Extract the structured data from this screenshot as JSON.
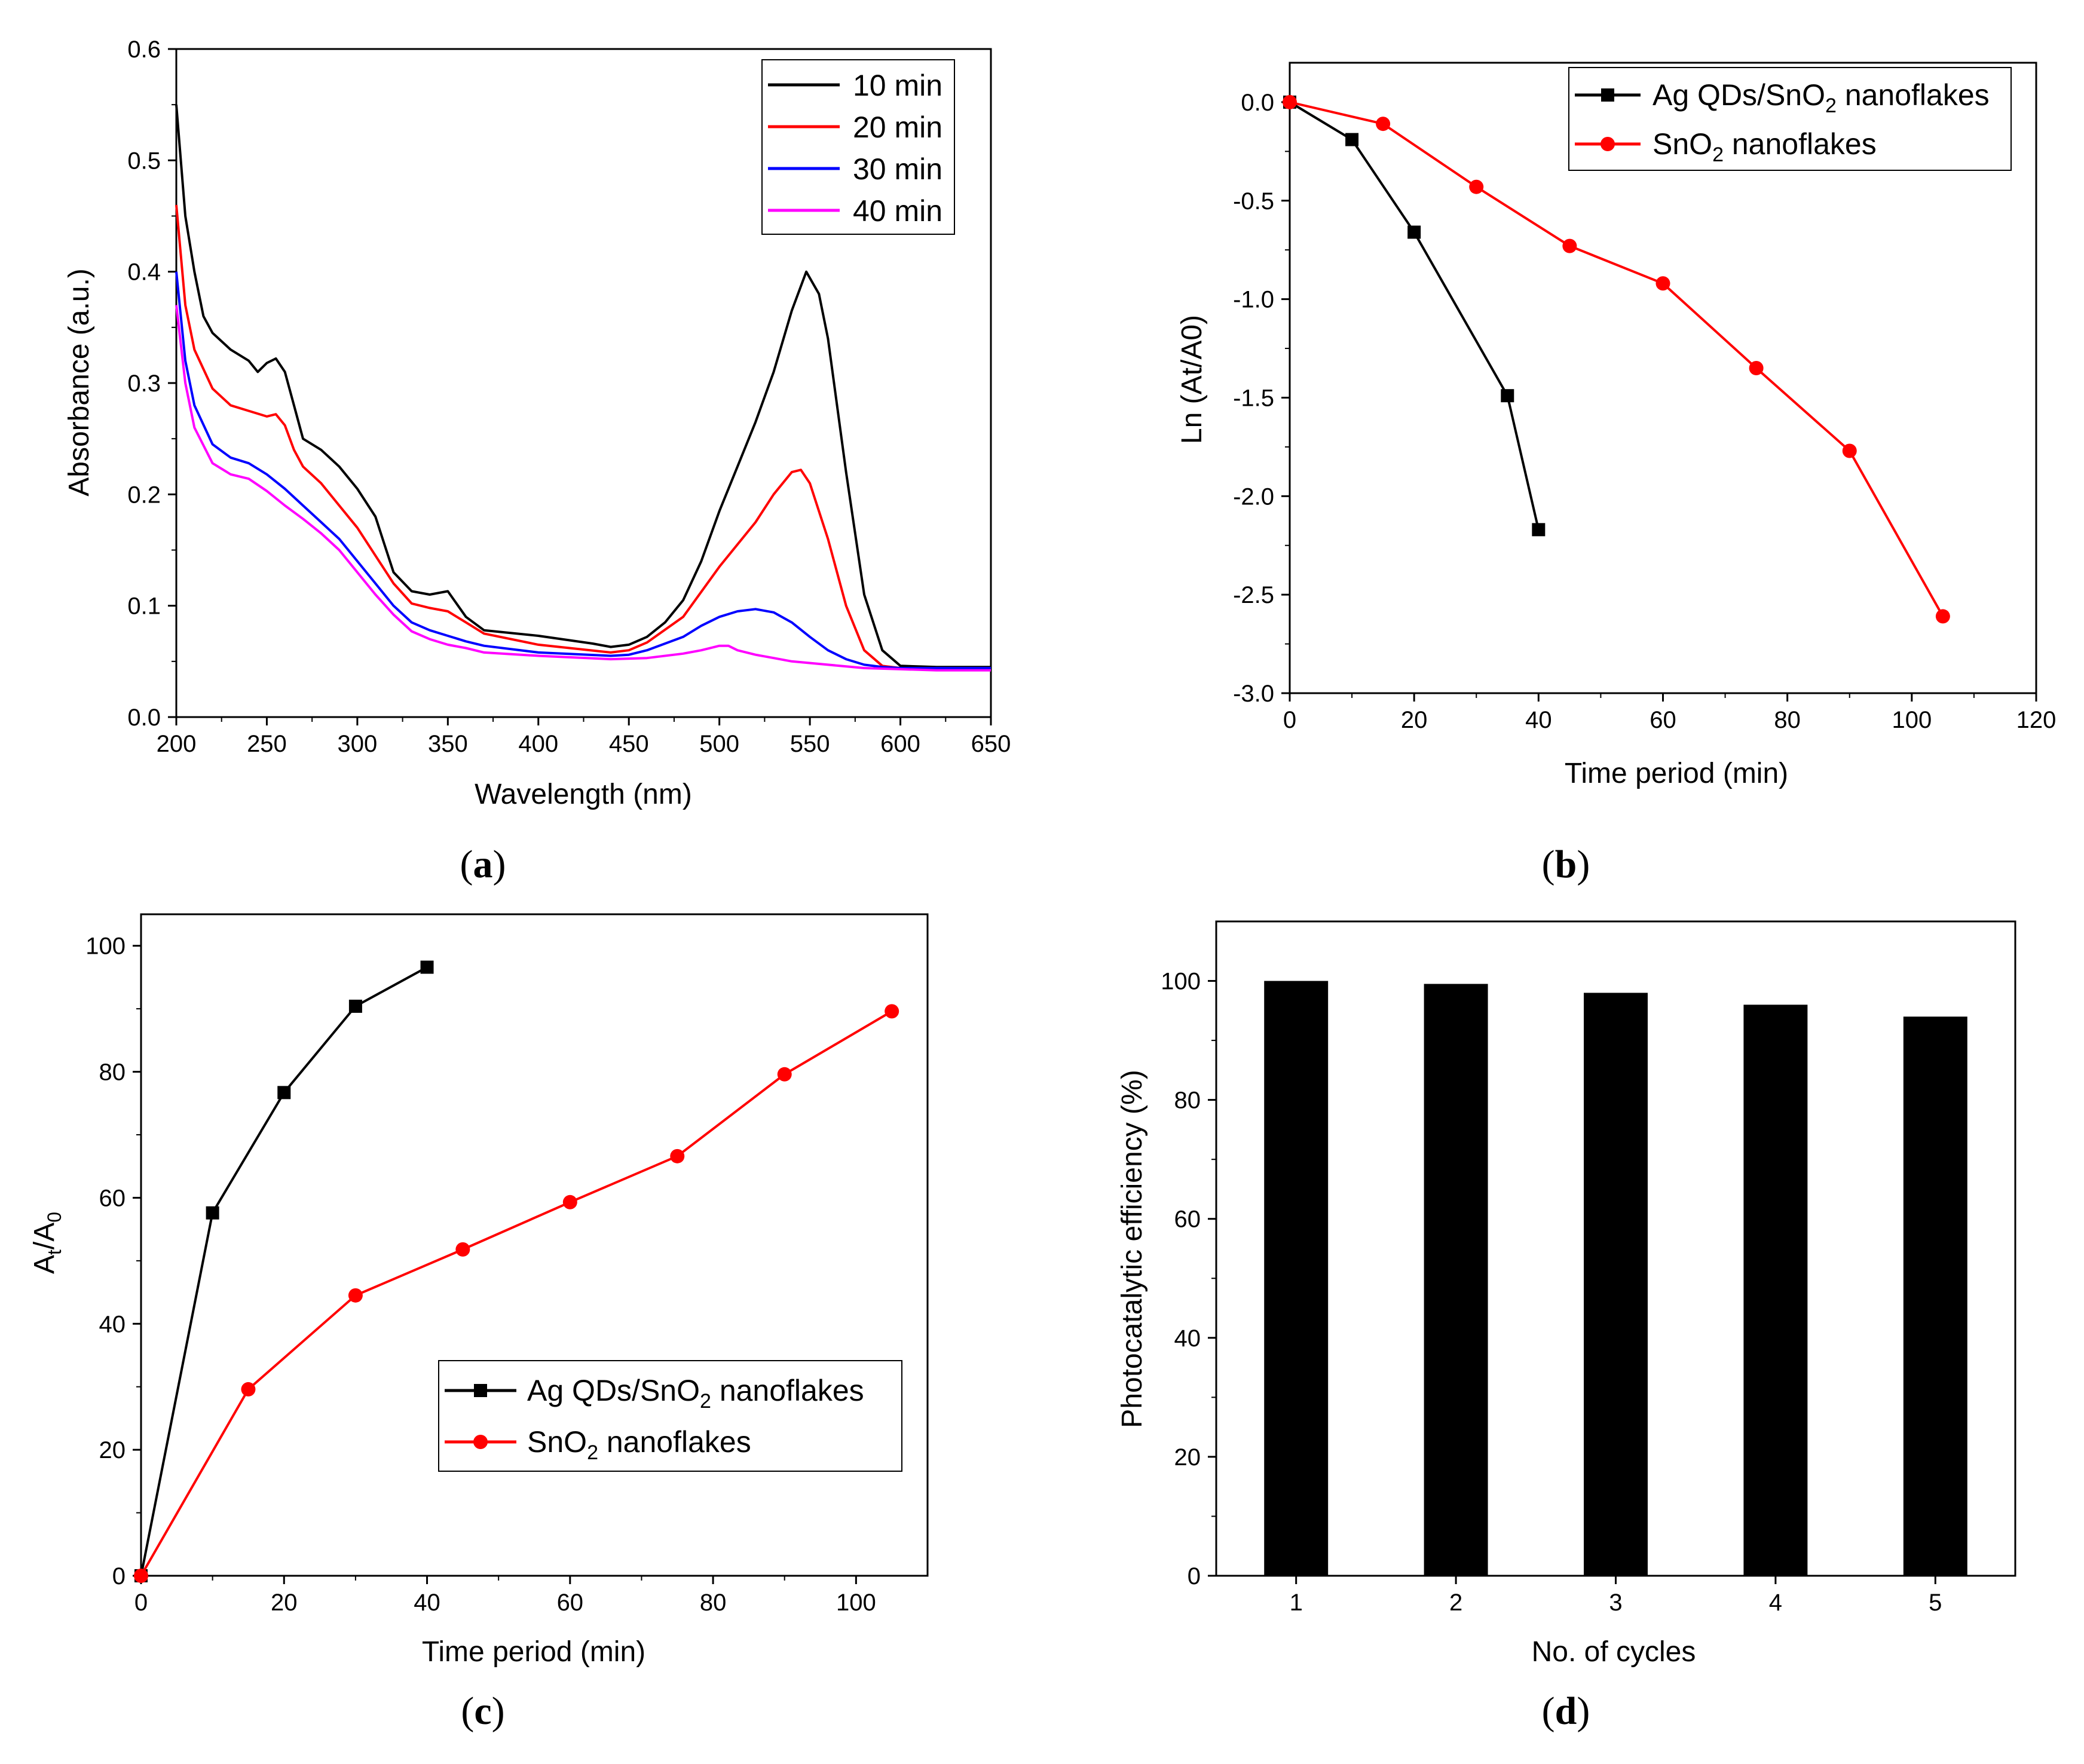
{
  "figure": {
    "panel_letters": [
      "a",
      "b",
      "c",
      "d"
    ],
    "colors": {
      "black": "#000000",
      "red": "#ff0000",
      "blue": "#0000ff",
      "magenta": "#ff00ff"
    }
  },
  "chart_data": [
    {
      "id": "a",
      "type": "line",
      "caption": "a",
      "xlabel": "Wavelength (nm)",
      "ylabel": "Absorbance (a.u.)",
      "xlim": [
        200,
        650
      ],
      "ylim": [
        0.0,
        0.6
      ],
      "xticks": [
        200,
        250,
        300,
        350,
        400,
        450,
        500,
        550,
        600,
        650
      ],
      "yticks": [
        0.0,
        0.1,
        0.2,
        0.3,
        0.4,
        0.5,
        0.6
      ],
      "ytick_labels": [
        "0.0",
        "0.1",
        "0.2",
        "0.3",
        "0.4",
        "0.5",
        "0.6"
      ],
      "legend_position": "top-right",
      "series": [
        {
          "name": "10 min",
          "color": "#000000",
          "x": [
            200,
            205,
            210,
            215,
            220,
            230,
            240,
            245,
            250,
            255,
            260,
            265,
            270,
            280,
            290,
            300,
            310,
            315,
            320,
            330,
            340,
            350,
            360,
            370,
            400,
            430,
            440,
            450,
            460,
            470,
            480,
            490,
            500,
            510,
            520,
            530,
            540,
            548,
            555,
            560,
            570,
            580,
            590,
            600,
            620,
            650
          ],
          "y": [
            0.55,
            0.45,
            0.4,
            0.36,
            0.345,
            0.33,
            0.32,
            0.31,
            0.318,
            0.322,
            0.31,
            0.28,
            0.25,
            0.24,
            0.225,
            0.205,
            0.18,
            0.155,
            0.13,
            0.113,
            0.11,
            0.113,
            0.09,
            0.078,
            0.073,
            0.066,
            0.063,
            0.065,
            0.072,
            0.085,
            0.105,
            0.14,
            0.185,
            0.225,
            0.265,
            0.31,
            0.365,
            0.4,
            0.38,
            0.34,
            0.22,
            0.11,
            0.06,
            0.046,
            0.045,
            0.045
          ]
        },
        {
          "name": "20 min",
          "color": "#ff0000",
          "x": [
            200,
            205,
            210,
            220,
            230,
            240,
            250,
            255,
            260,
            265,
            270,
            280,
            290,
            300,
            310,
            320,
            330,
            340,
            350,
            360,
            370,
            400,
            440,
            450,
            460,
            480,
            500,
            520,
            530,
            540,
            545,
            550,
            560,
            570,
            580,
            590,
            600,
            620,
            650
          ],
          "y": [
            0.46,
            0.37,
            0.33,
            0.295,
            0.28,
            0.275,
            0.27,
            0.272,
            0.262,
            0.24,
            0.225,
            0.21,
            0.19,
            0.17,
            0.145,
            0.12,
            0.102,
            0.098,
            0.095,
            0.085,
            0.075,
            0.065,
            0.058,
            0.06,
            0.067,
            0.09,
            0.135,
            0.175,
            0.2,
            0.22,
            0.222,
            0.21,
            0.16,
            0.1,
            0.06,
            0.046,
            0.044,
            0.044,
            0.044
          ]
        },
        {
          "name": "30 min",
          "color": "#0000ff",
          "x": [
            200,
            205,
            210,
            220,
            230,
            240,
            250,
            260,
            270,
            280,
            290,
            300,
            310,
            320,
            330,
            340,
            350,
            360,
            370,
            400,
            440,
            450,
            460,
            480,
            490,
            500,
            510,
            520,
            530,
            540,
            550,
            560,
            570,
            580,
            590,
            600,
            620,
            650
          ],
          "y": [
            0.4,
            0.32,
            0.28,
            0.245,
            0.233,
            0.228,
            0.218,
            0.205,
            0.19,
            0.175,
            0.16,
            0.14,
            0.12,
            0.1,
            0.085,
            0.078,
            0.073,
            0.068,
            0.064,
            0.058,
            0.055,
            0.056,
            0.06,
            0.072,
            0.082,
            0.09,
            0.095,
            0.097,
            0.094,
            0.085,
            0.072,
            0.06,
            0.052,
            0.047,
            0.045,
            0.044,
            0.044,
            0.044
          ]
        },
        {
          "name": "40 min",
          "color": "#ff00ff",
          "x": [
            200,
            205,
            210,
            220,
            230,
            240,
            250,
            260,
            270,
            280,
            290,
            300,
            310,
            320,
            330,
            340,
            350,
            360,
            370,
            400,
            440,
            460,
            480,
            490,
            500,
            505,
            510,
            520,
            530,
            540,
            560,
            580,
            600,
            620,
            650
          ],
          "y": [
            0.37,
            0.3,
            0.26,
            0.228,
            0.218,
            0.214,
            0.203,
            0.19,
            0.178,
            0.165,
            0.15,
            0.13,
            0.11,
            0.092,
            0.077,
            0.07,
            0.065,
            0.062,
            0.058,
            0.055,
            0.052,
            0.053,
            0.057,
            0.06,
            0.064,
            0.064,
            0.06,
            0.056,
            0.053,
            0.05,
            0.047,
            0.044,
            0.043,
            0.042,
            0.042
          ]
        }
      ]
    },
    {
      "id": "b",
      "type": "line",
      "caption": "b",
      "xlabel": "Time period (min)",
      "ylabel": "Ln (At/A0)",
      "xlim": [
        0,
        120
      ],
      "ylim": [
        -3.0,
        0.2
      ],
      "xticks": [
        0,
        20,
        40,
        60,
        80,
        100,
        120
      ],
      "yticks": [
        0.0,
        -0.5,
        -1.0,
        -1.5,
        -2.0,
        -2.5,
        -3.0
      ],
      "ytick_labels": [
        "0.0",
        "-0.5",
        "-1.0",
        "-1.5",
        "-2.0",
        "-2.5",
        "-3.0"
      ],
      "legend_position": "top-right",
      "series": [
        {
          "name_main": "Ag QDs/SnO",
          "name_sub": "2",
          "name_tail": " nanoflakes",
          "marker": "square",
          "color": "#000000",
          "x": [
            0,
            10,
            20,
            35,
            40
          ],
          "y": [
            0.0,
            -0.19,
            -0.66,
            -1.49,
            -2.17
          ]
        },
        {
          "name_main": "SnO",
          "name_sub": "2",
          "name_tail": " nanoflakes",
          "marker": "circle",
          "color": "#ff0000",
          "x": [
            0,
            15,
            30,
            45,
            60,
            75,
            90,
            105
          ],
          "y": [
            0.0,
            -0.11,
            -0.43,
            -0.73,
            -0.92,
            -1.35,
            -1.77,
            -2.61
          ]
        }
      ]
    },
    {
      "id": "c",
      "type": "line",
      "caption": "c",
      "xlabel": "Time period (min)",
      "ylabel_main": "A",
      "ylabel_sub1": "t",
      "ylabel_mid": "/A",
      "ylabel_sub2": "0",
      "xlim": [
        0,
        110
      ],
      "ylim": [
        0,
        105
      ],
      "xticks": [
        0,
        20,
        40,
        60,
        80,
        100
      ],
      "yticks": [
        0,
        20,
        40,
        60,
        80,
        100
      ],
      "legend_position": "bottom-right",
      "series": [
        {
          "name_main": "Ag QDs/SnO",
          "name_sub": "2",
          "name_tail": " nanoflakes",
          "marker": "square",
          "color": "#000000",
          "x": [
            0,
            10,
            20,
            30,
            40
          ],
          "y": [
            0,
            57.6,
            76.7,
            90.4,
            96.6
          ]
        },
        {
          "name_main": "SnO",
          "name_sub": "2",
          "name_tail": " nanoflakes",
          "marker": "circle",
          "color": "#ff0000",
          "x": [
            0,
            15,
            30,
            45,
            60,
            75,
            90,
            105
          ],
          "y": [
            0,
            29.6,
            44.5,
            51.8,
            59.3,
            66.6,
            79.6,
            89.6
          ]
        }
      ]
    },
    {
      "id": "d",
      "type": "bar",
      "caption": "d",
      "xlabel": "No. of cycles",
      "ylabel": "Photocatalytic efficiency (%)",
      "categories": [
        "1",
        "2",
        "3",
        "4",
        "5"
      ],
      "values": [
        100,
        99.5,
        98,
        96,
        94
      ],
      "ylim": [
        0,
        110
      ],
      "yticks": [
        0,
        20,
        40,
        60,
        80,
        100
      ],
      "color": "#000000"
    }
  ]
}
